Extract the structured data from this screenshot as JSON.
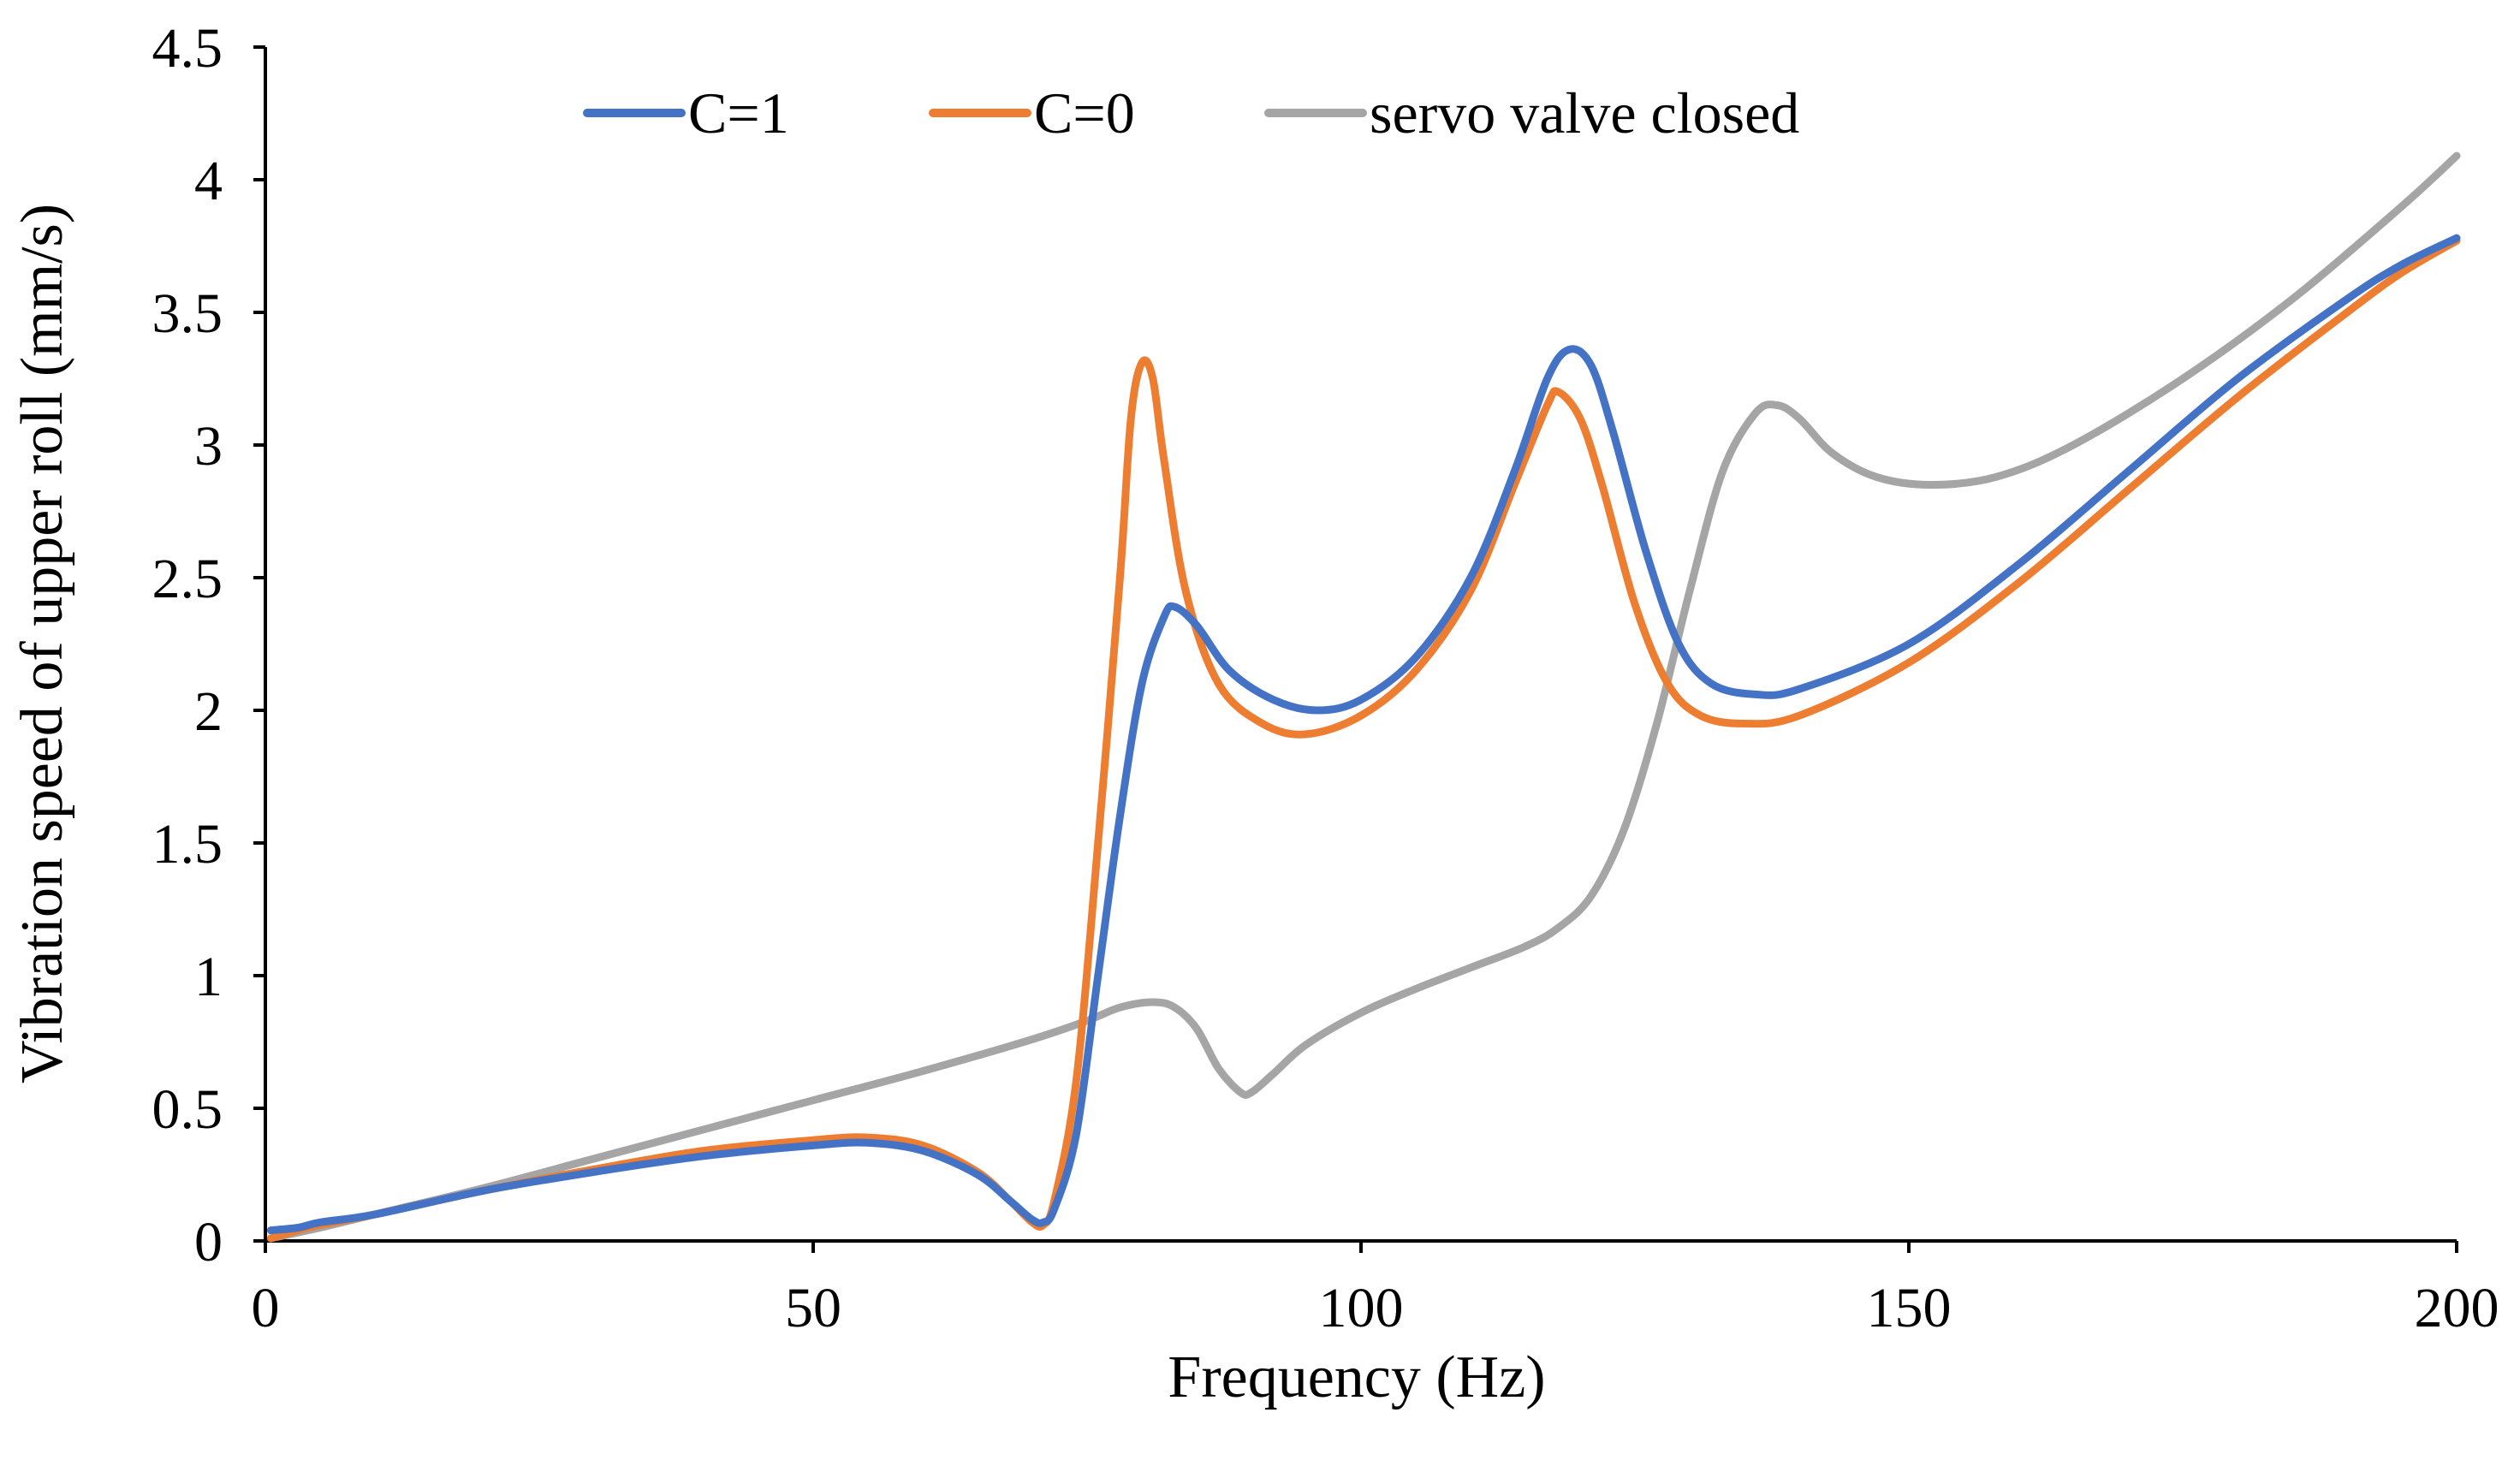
{
  "chart_data": {
    "type": "line",
    "title": "",
    "xlabel": "Frequency  (Hz)",
    "ylabel": "Vibration speed of upper roll  (mm/s)",
    "xlim": [
      0,
      200
    ],
    "ylim": [
      0,
      4.5
    ],
    "x_ticks": [
      0,
      50,
      100,
      150,
      200
    ],
    "y_ticks": [
      0,
      0.5,
      1,
      1.5,
      2,
      2.5,
      3,
      3.5,
      4,
      4.5
    ],
    "x_tick_labels": [
      "0",
      "50",
      "100",
      "150",
      "200"
    ],
    "y_tick_labels": [
      "0",
      "0.5",
      "1",
      "1.5",
      "2",
      "2.5",
      "3",
      "3.5",
      "4",
      "4.5"
    ],
    "grid": false,
    "legend_position": "top-center",
    "series": [
      {
        "name": "C=1",
        "color": "#4472C4",
        "points": [
          [
            0.5,
            0.04
          ],
          [
            3,
            0.05
          ],
          [
            5,
            0.07
          ],
          [
            10,
            0.1
          ],
          [
            20,
            0.19
          ],
          [
            30,
            0.26
          ],
          [
            40,
            0.32
          ],
          [
            50,
            0.36
          ],
          [
            55,
            0.37
          ],
          [
            60,
            0.34
          ],
          [
            65,
            0.25
          ],
          [
            68,
            0.15
          ],
          [
            70,
            0.08
          ],
          [
            71,
            0.07
          ],
          [
            72,
            0.12
          ],
          [
            74,
            0.4
          ],
          [
            76,
            1.0
          ],
          [
            78,
            1.6
          ],
          [
            80,
            2.1
          ],
          [
            82,
            2.35
          ],
          [
            83,
            2.39
          ],
          [
            85,
            2.32
          ],
          [
            88,
            2.15
          ],
          [
            92,
            2.04
          ],
          [
            96,
            2.0
          ],
          [
            100,
            2.04
          ],
          [
            105,
            2.2
          ],
          [
            110,
            2.5
          ],
          [
            114,
            2.9
          ],
          [
            117,
            3.25
          ],
          [
            119,
            3.36
          ],
          [
            121,
            3.3
          ],
          [
            123,
            3.05
          ],
          [
            126,
            2.6
          ],
          [
            129,
            2.25
          ],
          [
            132,
            2.1
          ],
          [
            136,
            2.06
          ],
          [
            140,
            2.08
          ],
          [
            150,
            2.25
          ],
          [
            160,
            2.55
          ],
          [
            170,
            2.9
          ],
          [
            180,
            3.25
          ],
          [
            190,
            3.55
          ],
          [
            195,
            3.68
          ],
          [
            200,
            3.78
          ]
        ]
      },
      {
        "name": "C=0",
        "color": "#ED7D31",
        "points": [
          [
            0.5,
            0.01
          ],
          [
            3,
            0.04
          ],
          [
            5,
            0.06
          ],
          [
            10,
            0.1
          ],
          [
            20,
            0.19
          ],
          [
            30,
            0.27
          ],
          [
            40,
            0.34
          ],
          [
            50,
            0.38
          ],
          [
            55,
            0.39
          ],
          [
            60,
            0.36
          ],
          [
            65,
            0.26
          ],
          [
            68,
            0.15
          ],
          [
            70,
            0.07
          ],
          [
            71,
            0.06
          ],
          [
            72,
            0.15
          ],
          [
            74,
            0.6
          ],
          [
            76,
            1.5
          ],
          [
            78,
            2.5
          ],
          [
            79,
            3.1
          ],
          [
            80,
            3.31
          ],
          [
            81,
            3.25
          ],
          [
            82,
            2.95
          ],
          [
            84,
            2.45
          ],
          [
            87,
            2.1
          ],
          [
            91,
            1.95
          ],
          [
            95,
            1.91
          ],
          [
            100,
            1.98
          ],
          [
            105,
            2.15
          ],
          [
            110,
            2.45
          ],
          [
            114,
            2.85
          ],
          [
            117,
            3.15
          ],
          [
            118,
            3.2
          ],
          [
            120,
            3.1
          ],
          [
            122,
            2.85
          ],
          [
            125,
            2.4
          ],
          [
            128,
            2.1
          ],
          [
            131,
            1.98
          ],
          [
            135,
            1.95
          ],
          [
            140,
            1.98
          ],
          [
            150,
            2.18
          ],
          [
            160,
            2.48
          ],
          [
            170,
            2.83
          ],
          [
            180,
            3.18
          ],
          [
            190,
            3.5
          ],
          [
            195,
            3.65
          ],
          [
            200,
            3.77
          ]
        ]
      },
      {
        "name": "servo valve closed",
        "color": "#A5A5A5",
        "points": [
          [
            0.5,
            0.01
          ],
          [
            5,
            0.05
          ],
          [
            10,
            0.1
          ],
          [
            20,
            0.2
          ],
          [
            30,
            0.31
          ],
          [
            40,
            0.42
          ],
          [
            50,
            0.53
          ],
          [
            60,
            0.64
          ],
          [
            70,
            0.76
          ],
          [
            75,
            0.83
          ],
          [
            78,
            0.88
          ],
          [
            81,
            0.9
          ],
          [
            83,
            0.88
          ],
          [
            85,
            0.8
          ],
          [
            87,
            0.65
          ],
          [
            89,
            0.56
          ],
          [
            90,
            0.56
          ],
          [
            92,
            0.63
          ],
          [
            95,
            0.74
          ],
          [
            100,
            0.86
          ],
          [
            105,
            0.95
          ],
          [
            110,
            1.03
          ],
          [
            115,
            1.11
          ],
          [
            118,
            1.18
          ],
          [
            121,
            1.3
          ],
          [
            124,
            1.55
          ],
          [
            127,
            1.95
          ],
          [
            130,
            2.45
          ],
          [
            133,
            2.9
          ],
          [
            136,
            3.12
          ],
          [
            138,
            3.15
          ],
          [
            140,
            3.1
          ],
          [
            143,
            2.97
          ],
          [
            147,
            2.88
          ],
          [
            152,
            2.85
          ],
          [
            158,
            2.88
          ],
          [
            165,
            3.0
          ],
          [
            175,
            3.25
          ],
          [
            185,
            3.55
          ],
          [
            195,
            3.9
          ],
          [
            200,
            4.09
          ]
        ]
      }
    ]
  }
}
